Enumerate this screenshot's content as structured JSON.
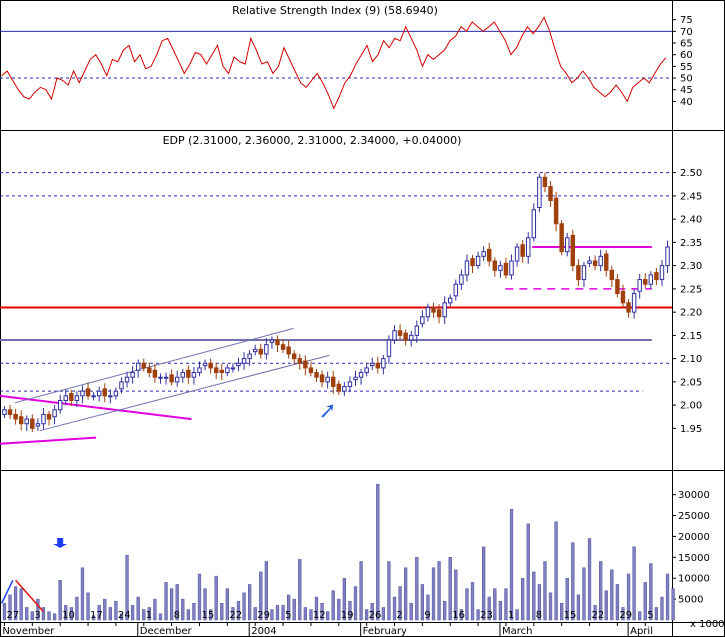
{
  "chart_data": [
    {
      "type": "line",
      "panel": "indicator",
      "title": "Relative Strength Index (9) (58.6940)",
      "ylim": [
        33,
        80
      ],
      "yticks": [
        40,
        45,
        50,
        55,
        60,
        65,
        70,
        75
      ],
      "ytick_labels": [
        "40",
        "45",
        "50",
        "55",
        "60",
        "65",
        "70",
        "75"
      ],
      "reference_lines": [
        {
          "value": 70,
          "style": "solid",
          "color": "#2b2bb0"
        },
        {
          "value": 50,
          "style": "dashed",
          "color": "#2b2bb0"
        }
      ],
      "series": [
        {
          "color": "#d40000",
          "values": [
            51,
            53,
            49,
            45,
            42,
            41,
            44,
            46,
            45,
            41,
            50,
            49,
            47,
            53,
            48,
            53,
            58,
            60,
            56,
            51,
            58,
            57,
            62,
            64,
            57,
            60,
            54,
            55,
            60,
            66,
            67,
            62,
            57,
            52,
            56,
            61,
            60,
            56,
            60,
            64,
            55,
            52,
            59,
            57,
            56,
            67,
            62,
            56,
            57,
            52,
            55,
            63,
            58,
            53,
            48,
            46,
            49,
            52,
            48,
            43,
            37,
            42,
            48,
            51,
            56,
            60,
            64,
            57,
            60,
            66,
            63,
            67,
            66,
            72,
            67,
            62,
            55,
            60,
            58,
            60,
            62,
            66,
            68,
            72,
            70,
            74,
            72,
            70,
            72,
            74,
            70,
            66,
            60,
            63,
            68,
            72,
            69,
            72,
            76,
            70,
            62,
            55,
            52,
            48,
            50,
            53,
            50,
            46,
            44,
            42,
            44,
            47,
            44,
            40,
            46,
            48,
            50,
            48,
            52,
            56,
            58.7
          ]
        }
      ]
    },
    {
      "type": "candlestick",
      "panel": "price",
      "title": "EDP (2.31000, 2.36000, 2.31000, 2.34000, +0.04000)",
      "ylim": [
        1.9,
        2.55
      ],
      "yticks": [
        1.95,
        2.0,
        2.05,
        2.1,
        2.15,
        2.2,
        2.25,
        2.3,
        2.35,
        2.4,
        2.45,
        2.5
      ],
      "ytick_labels": [
        "1.95",
        "2.00",
        "2.05",
        "2.10",
        "2.15",
        "2.20",
        "2.25",
        "2.30",
        "2.35",
        "2.40",
        "2.45",
        "2.50"
      ],
      "up_color": "#3030a0",
      "down_color": "#a0400c",
      "closes": [
        1.99,
        1.98,
        1.97,
        1.96,
        1.97,
        1.95,
        1.96,
        1.98,
        1.97,
        1.99,
        2.01,
        2.02,
        2.01,
        2.02,
        2.03,
        2.02,
        2.02,
        2.03,
        2.02,
        2.02,
        2.03,
        2.05,
        2.06,
        2.07,
        2.09,
        2.08,
        2.07,
        2.06,
        2.06,
        2.06,
        2.05,
        2.06,
        2.07,
        2.06,
        2.07,
        2.08,
        2.09,
        2.08,
        2.07,
        2.07,
        2.08,
        2.08,
        2.09,
        2.1,
        2.11,
        2.12,
        2.11,
        2.13,
        2.14,
        2.13,
        2.12,
        2.11,
        2.1,
        2.09,
        2.08,
        2.07,
        2.06,
        2.05,
        2.06,
        2.04,
        2.03,
        2.04,
        2.05,
        2.06,
        2.07,
        2.08,
        2.09,
        2.08,
        2.1,
        2.14,
        2.16,
        2.15,
        2.14,
        2.15,
        2.17,
        2.19,
        2.21,
        2.2,
        2.19,
        2.22,
        2.23,
        2.26,
        2.28,
        2.31,
        2.3,
        2.32,
        2.33,
        2.31,
        2.29,
        2.3,
        2.28,
        2.31,
        2.34,
        2.32,
        2.36,
        2.42,
        2.49,
        2.47,
        2.44,
        2.39,
        2.33,
        2.36,
        2.3,
        2.27,
        2.3,
        2.31,
        2.3,
        2.32,
        2.29,
        2.27,
        2.24,
        2.22,
        2.2,
        2.24,
        2.27,
        2.26,
        2.28,
        2.27,
        2.3,
        2.34
      ],
      "horizontal_lines": [
        {
          "value": 2.21,
          "x0": 0,
          "x1": 1,
          "color": "#e00000",
          "width": 2
        },
        {
          "value": 2.14,
          "x0": 0,
          "x1": 0.97,
          "color": "#7070b0",
          "width": 2
        },
        {
          "value": 2.34,
          "x0": 0.792,
          "x1": 0.97,
          "color": "#e000e0",
          "width": 2
        },
        {
          "value": 2.25,
          "x0": 0.752,
          "x1": 0.97,
          "color": "#e000e0",
          "width": 1.5,
          "dash": "8,6"
        },
        {
          "value": 2.45,
          "dash": "3,3",
          "color": "#2b2bb0"
        },
        {
          "value": 2.5,
          "dash": "3,3",
          "color": "#2b2bb0"
        },
        {
          "value": 2.09,
          "dash": "3,3",
          "color": "#2b2bb0"
        },
        {
          "value": 2.03,
          "x0": 0,
          "x1": 0.956,
          "dash": "3,3",
          "color": "#2b2bb0"
        }
      ],
      "trend_lines": [
        {
          "from": [
            0.0,
            2.02
          ],
          "to": [
            0.285,
            1.97
          ],
          "color": "#e000e0",
          "width": 2
        },
        {
          "from": [
            0.0,
            1.917
          ],
          "to": [
            0.143,
            1.93
          ],
          "color": "#e000e0",
          "width": 2
        },
        {
          "from": [
            0.022,
            2.005
          ],
          "to": [
            0.437,
            2.165
          ],
          "color": "#7070b0",
          "width": 1
        },
        {
          "from": [
            0.059,
            1.945
          ],
          "to": [
            0.49,
            2.107
          ],
          "color": "#7070b0",
          "width": 1
        }
      ],
      "arrow_marker": {
        "value": 2.01,
        "index": 59,
        "color": "#2060e0",
        "direction": "up-right"
      }
    },
    {
      "type": "bar",
      "panel": "volume",
      "ylim": [
        0,
        33500
      ],
      "yticks": [
        5000,
        10000,
        15000,
        20000,
        25000,
        30000
      ],
      "ytick_labels": [
        "5000",
        "10000",
        "15000",
        "20000",
        "25000",
        "30000"
      ],
      "ylabel": "x 1000",
      "color": "#8080c0",
      "values": [
        4000,
        6000,
        8000,
        7500,
        3000,
        2000,
        5000,
        3000,
        2000,
        1500,
        9500,
        3500,
        3000,
        5500,
        12500,
        6500,
        1000,
        3500,
        5000,
        3000,
        4500,
        1500,
        15500,
        3500,
        5500,
        2500,
        3000,
        5000,
        1500,
        9000,
        7500,
        8500,
        5000,
        2500,
        4000,
        11000,
        7500,
        2500,
        10500,
        4000,
        7500,
        3000,
        4500,
        6500,
        8500,
        3000,
        11500,
        14000,
        2500,
        3500,
        3500,
        6000,
        5000,
        14500,
        3000,
        2500,
        5500,
        4000,
        2000,
        7000,
        5000,
        10000,
        4500,
        8000,
        14000,
        2500,
        4000,
        32500,
        3000,
        14000,
        5500,
        8000,
        12500,
        4000,
        15000,
        8500,
        6000,
        12500,
        14000,
        4500,
        15000,
        12000,
        2500,
        7500,
        9000,
        2500,
        17500,
        5500,
        7500,
        4500,
        7500,
        26500,
        2500,
        10000,
        23000,
        11500,
        8500,
        14000,
        6500,
        23500,
        4000,
        10000,
        18500,
        6000,
        12500,
        19500,
        3500,
        14000,
        7000,
        12000,
        8500,
        3000,
        11000,
        17500,
        2000,
        9000,
        13500,
        3000,
        5500,
        11000,
        7500
      ]
    }
  ],
  "x_axis": {
    "tick_labels": [
      "27",
      "3",
      "10",
      "17",
      "24",
      "1",
      "8",
      "15",
      "22",
      "29",
      "5",
      "12",
      "19",
      "26",
      "2",
      "9",
      "16",
      "23",
      "1",
      "8",
      "15",
      "22",
      "29",
      "5"
    ],
    "tick_index": [
      0,
      5,
      10,
      15,
      20,
      25,
      30,
      35,
      40,
      45,
      50,
      55,
      60,
      65,
      70,
      75,
      80,
      85,
      90,
      95,
      100,
      105,
      110,
      115
    ],
    "month_labels": [
      "November",
      "December",
      "2004",
      "February",
      "March",
      "April"
    ],
    "month_index": [
      5,
      25,
      45,
      65,
      90,
      113
    ]
  },
  "volume_annotations": {
    "arrow_index": 10,
    "arrow_color": "#1f3fff",
    "lines": [
      {
        "from_index": -0.5,
        "from_value": 4000,
        "to_index": 1.5,
        "to_value": 9500,
        "color": "#1f3fff"
      },
      {
        "from_index": 2,
        "from_value": 9500,
        "to_index": 7,
        "to_value": 2000,
        "color": "#e01010"
      }
    ]
  }
}
